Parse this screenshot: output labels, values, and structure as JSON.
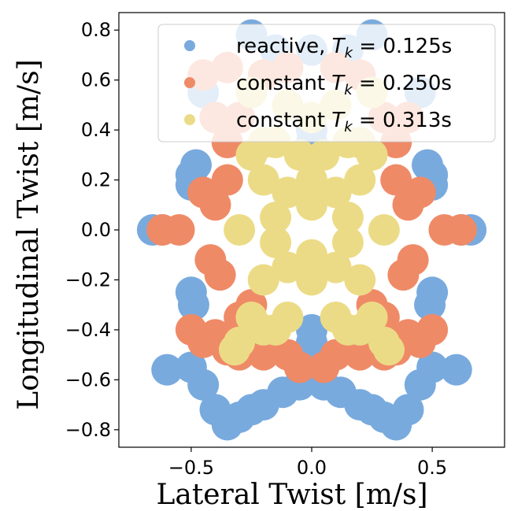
{
  "chart_data": {
    "type": "scatter",
    "xlabel": "Lateral Twist [m/s]",
    "ylabel": "Longitudinal Twist [m/s]",
    "xlim": [
      -0.8,
      0.8
    ],
    "ylim": [
      -0.87,
      0.87
    ],
    "xticks": [
      -0.5,
      0.0,
      0.5
    ],
    "xtick_labels": [
      "−0.5",
      "0.0",
      "0.5"
    ],
    "yticks": [
      -0.8,
      -0.6,
      -0.4,
      -0.2,
      0.0,
      0.2,
      0.4,
      0.6,
      0.8
    ],
    "ytick_labels": [
      "−0.8",
      "−0.6",
      "−0.4",
      "−0.2",
      "0.0",
      "0.2",
      "0.4",
      "0.6",
      "0.8"
    ],
    "grid": false,
    "legend_position": "top-right",
    "series": [
      {
        "name": "reactive",
        "legend_prefix": "reactive, ",
        "legend_tk": "0.125s",
        "color": "#78aade",
        "points": [
          [
            -0.66,
            0.0
          ],
          [
            -0.62,
            0.0
          ],
          [
            0.62,
            0.0
          ],
          [
            0.66,
            0.0
          ],
          [
            -0.5,
            -0.55
          ],
          [
            -0.45,
            -0.62
          ],
          [
            -0.4,
            -0.72
          ],
          [
            -0.35,
            -0.78
          ],
          [
            -0.3,
            -0.75
          ],
          [
            -0.25,
            -0.72
          ],
          [
            -0.2,
            -0.7
          ],
          [
            -0.12,
            -0.65
          ],
          [
            -0.05,
            -0.62
          ],
          [
            0.05,
            -0.62
          ],
          [
            0.12,
            -0.65
          ],
          [
            0.2,
            -0.7
          ],
          [
            0.25,
            -0.72
          ],
          [
            0.3,
            -0.75
          ],
          [
            0.35,
            -0.78
          ],
          [
            0.4,
            -0.72
          ],
          [
            0.45,
            -0.62
          ],
          [
            0.5,
            -0.55
          ],
          [
            0.6,
            -0.56
          ],
          [
            -0.6,
            -0.56
          ],
          [
            -0.5,
            0.22
          ],
          [
            -0.48,
            0.26
          ],
          [
            -0.5,
            0.18
          ],
          [
            0.5,
            0.22
          ],
          [
            0.48,
            0.26
          ],
          [
            0.5,
            0.18
          ],
          [
            -0.5,
            -0.25
          ],
          [
            -0.49,
            -0.3
          ],
          [
            0.5,
            -0.25
          ],
          [
            0.49,
            -0.3
          ],
          [
            -0.15,
            0.72
          ],
          [
            0.15,
            0.72
          ],
          [
            -0.25,
            0.78
          ],
          [
            0.25,
            0.78
          ],
          [
            0.0,
            0.72
          ],
          [
            -0.4,
            0.45
          ],
          [
            0.4,
            0.45
          ],
          [
            -0.45,
            0.55
          ],
          [
            0.45,
            0.55
          ],
          [
            -0.05,
            -0.55
          ],
          [
            0.05,
            -0.55
          ],
          [
            0.0,
            -0.4
          ],
          [
            0.0,
            -0.45
          ],
          [
            0.0,
            0.4
          ],
          [
            0.0,
            0.35
          ]
        ]
      },
      {
        "name": "constant",
        "legend_prefix": "constant ",
        "legend_tk": "0.250s",
        "color": "#ef8a67",
        "points": [
          [
            -0.62,
            0.0
          ],
          [
            -0.55,
            0.0
          ],
          [
            0.55,
            0.0
          ],
          [
            0.62,
            0.0
          ],
          [
            -0.5,
            -0.4
          ],
          [
            -0.45,
            -0.45
          ],
          [
            -0.4,
            -0.42
          ],
          [
            -0.35,
            -0.48
          ],
          [
            -0.3,
            -0.5
          ],
          [
            -0.2,
            -0.5
          ],
          [
            -0.1,
            -0.5
          ],
          [
            -0.05,
            -0.55
          ],
          [
            0.05,
            -0.55
          ],
          [
            0.1,
            -0.5
          ],
          [
            0.2,
            -0.5
          ],
          [
            0.3,
            -0.5
          ],
          [
            0.35,
            -0.48
          ],
          [
            0.4,
            -0.42
          ],
          [
            0.45,
            -0.45
          ],
          [
            0.5,
            -0.4
          ],
          [
            -0.45,
            0.15
          ],
          [
            -0.4,
            0.1
          ],
          [
            -0.35,
            0.2
          ],
          [
            0.45,
            0.15
          ],
          [
            0.4,
            0.1
          ],
          [
            0.35,
            0.2
          ],
          [
            -0.42,
            -0.12
          ],
          [
            -0.38,
            -0.18
          ],
          [
            0.42,
            -0.12
          ],
          [
            0.38,
            -0.18
          ],
          [
            -0.4,
            0.45
          ],
          [
            -0.3,
            0.45
          ],
          [
            0.4,
            0.45
          ],
          [
            0.3,
            0.45
          ],
          [
            -0.35,
            0.35
          ],
          [
            0.35,
            0.35
          ],
          [
            -0.25,
            -0.3
          ],
          [
            0.25,
            -0.3
          ],
          [
            -0.3,
            -0.35
          ],
          [
            0.3,
            -0.35
          ],
          [
            -0.1,
            0.65
          ],
          [
            0.1,
            0.65
          ],
          [
            -0.2,
            0.62
          ],
          [
            0.2,
            0.62
          ],
          [
            -0.35,
            0.65
          ],
          [
            -0.45,
            0.62
          ]
        ]
      },
      {
        "name": "constant",
        "legend_prefix": "constant ",
        "legend_tk": "0.313s",
        "color": "#ecdb86",
        "points": [
          [
            -0.3,
            0.0
          ],
          [
            0.3,
            0.0
          ],
          [
            -0.25,
            0.3
          ],
          [
            -0.2,
            0.35
          ],
          [
            -0.15,
            0.35
          ],
          [
            -0.05,
            0.3
          ],
          [
            0.05,
            0.3
          ],
          [
            0.15,
            0.35
          ],
          [
            0.2,
            0.35
          ],
          [
            0.25,
            0.3
          ],
          [
            -0.2,
            0.2
          ],
          [
            -0.1,
            0.15
          ],
          [
            0.0,
            0.1
          ],
          [
            0.1,
            0.15
          ],
          [
            0.2,
            0.2
          ],
          [
            -0.2,
            -0.2
          ],
          [
            -0.1,
            -0.15
          ],
          [
            0.0,
            -0.1
          ],
          [
            0.1,
            -0.15
          ],
          [
            0.2,
            -0.2
          ],
          [
            -0.25,
            -0.35
          ],
          [
            -0.2,
            -0.4
          ],
          [
            -0.15,
            -0.4
          ],
          [
            -0.1,
            -0.35
          ],
          [
            0.1,
            -0.35
          ],
          [
            0.15,
            -0.4
          ],
          [
            0.2,
            -0.4
          ],
          [
            0.25,
            -0.35
          ],
          [
            -0.3,
            -0.45
          ],
          [
            0.3,
            -0.45
          ],
          [
            -0.32,
            -0.48
          ],
          [
            0.32,
            -0.48
          ],
          [
            -0.15,
            0.05
          ],
          [
            0.15,
            0.05
          ],
          [
            -0.15,
            -0.05
          ],
          [
            0.15,
            -0.05
          ],
          [
            0.0,
            0.2
          ],
          [
            0.0,
            -0.2
          ],
          [
            -0.25,
            0.55
          ],
          [
            -0.1,
            0.5
          ],
          [
            0.1,
            0.5
          ],
          [
            0.25,
            0.55
          ],
          [
            0.0,
            0.45
          ]
        ]
      }
    ]
  }
}
